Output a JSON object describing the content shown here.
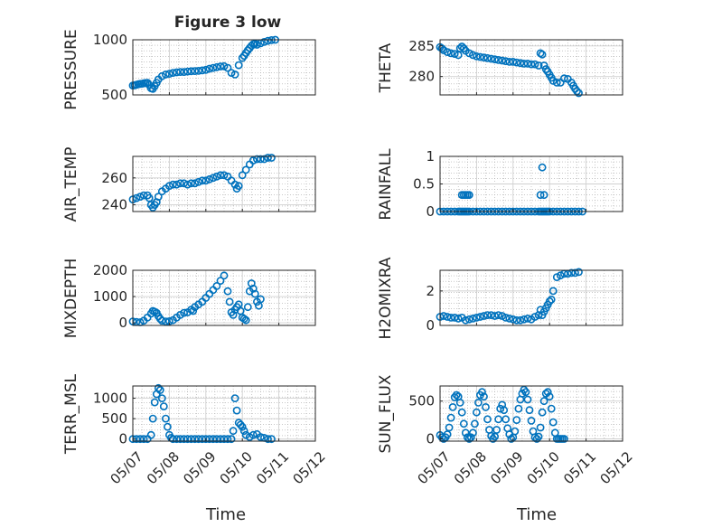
{
  "figure": {
    "title": "Figure 3 low",
    "xlabel": "Time",
    "xticks": [
      "05/07",
      "05/08",
      "05/09",
      "05/10",
      "05/11",
      "05/12"
    ]
  },
  "colors": {
    "marker": "#0072BD",
    "axis": "#262626",
    "grid": "#a8a8a8"
  },
  "chart_data": [
    {
      "type": "scatter",
      "name": "PRESSURE",
      "ylabel": "PRESSURE",
      "ylim": [
        500,
        1000
      ],
      "yticks": [
        500,
        1000
      ],
      "xlim": [
        0,
        5
      ],
      "grid": true,
      "title": "Figure 3 low",
      "x": [
        0.0,
        0.05,
        0.1,
        0.15,
        0.2,
        0.25,
        0.3,
        0.35,
        0.4,
        0.45,
        0.5,
        0.55,
        0.6,
        0.65,
        0.7,
        0.8,
        0.9,
        1.0,
        1.1,
        1.2,
        1.3,
        1.4,
        1.5,
        1.6,
        1.7,
        1.8,
        1.9,
        2.0,
        2.1,
        2.2,
        2.3,
        2.4,
        2.5,
        2.6,
        2.7,
        2.8,
        2.9,
        3.0,
        3.05,
        3.1,
        3.15,
        3.2,
        3.25,
        3.3,
        3.35,
        3.4,
        3.5,
        3.6,
        3.7,
        3.8,
        3.9
      ],
      "y": [
        585,
        588,
        592,
        597,
        600,
        602,
        605,
        608,
        610,
        590,
        560,
        555,
        580,
        610,
        640,
        670,
        685,
        692,
        700,
        705,
        708,
        708,
        712,
        715,
        716,
        718,
        722,
        727,
        738,
        745,
        752,
        758,
        760,
        745,
        700,
        685,
        770,
        835,
        855,
        880,
        905,
        925,
        945,
        960,
        965,
        955,
        968,
        980,
        990,
        997,
        1000
      ]
    },
    {
      "type": "scatter",
      "name": "THETA",
      "ylabel": "THETA",
      "ylim": [
        277,
        286
      ],
      "yticks": [
        280,
        285
      ],
      "xlim": [
        0,
        5
      ],
      "grid": true,
      "x": [
        0.0,
        0.05,
        0.1,
        0.2,
        0.3,
        0.4,
        0.5,
        0.55,
        0.6,
        0.65,
        0.7,
        0.8,
        0.9,
        1.0,
        1.1,
        1.2,
        1.3,
        1.4,
        1.5,
        1.6,
        1.7,
        1.8,
        1.9,
        2.0,
        2.1,
        2.2,
        2.3,
        2.4,
        2.5,
        2.6,
        2.7,
        2.75,
        2.8,
        2.85,
        2.9,
        2.95,
        3.0,
        3.05,
        3.1,
        3.2,
        3.3,
        3.4,
        3.5,
        3.6,
        3.65,
        3.7,
        3.75,
        3.8
      ],
      "y": [
        284.8,
        284.6,
        284.3,
        284.0,
        283.8,
        283.7,
        283.5,
        284.6,
        284.9,
        284.6,
        284.2,
        283.8,
        283.5,
        283.3,
        283.2,
        283.1,
        283.0,
        282.9,
        282.8,
        282.7,
        282.6,
        282.5,
        282.4,
        282.4,
        282.3,
        282.2,
        282.1,
        282.1,
        282.0,
        282.0,
        281.8,
        283.8,
        283.6,
        281.8,
        281.2,
        280.8,
        280.3,
        279.8,
        279.3,
        279.0,
        279.0,
        279.7,
        279.6,
        279.0,
        278.5,
        278.0,
        277.6,
        277.3
      ]
    },
    {
      "type": "scatter",
      "name": "AIR_TEMP",
      "ylabel": "AIR_TEMP",
      "ylim": [
        235,
        276
      ],
      "yticks": [
        240,
        260
      ],
      "xlim": [
        0,
        5
      ],
      "grid": true,
      "x": [
        0.0,
        0.1,
        0.2,
        0.3,
        0.4,
        0.45,
        0.5,
        0.55,
        0.6,
        0.65,
        0.7,
        0.8,
        0.9,
        1.0,
        1.1,
        1.2,
        1.3,
        1.4,
        1.5,
        1.6,
        1.7,
        1.8,
        1.9,
        2.0,
        2.1,
        2.2,
        2.3,
        2.4,
        2.5,
        2.6,
        2.7,
        2.8,
        2.85,
        2.9,
        3.0,
        3.1,
        3.2,
        3.3,
        3.4,
        3.5,
        3.6,
        3.7,
        3.8
      ],
      "y": [
        244,
        245,
        246,
        247,
        247,
        245,
        240,
        238,
        240,
        242,
        246,
        250,
        252,
        254,
        255,
        255,
        256,
        256,
        255,
        256,
        256,
        257,
        258,
        258,
        259,
        260,
        261,
        262,
        262,
        261,
        258,
        255,
        252,
        254,
        262,
        266,
        270,
        273,
        274,
        274,
        274,
        275,
        275
      ]
    },
    {
      "type": "scatter",
      "name": "RAINFALL",
      "ylabel": "RAINFALL",
      "ylim": [
        0,
        1
      ],
      "yticks": [
        0,
        0.5,
        1
      ],
      "xlim": [
        0,
        5
      ],
      "grid": true,
      "x": [
        0.0,
        0.1,
        0.2,
        0.3,
        0.4,
        0.5,
        0.55,
        0.6,
        0.65,
        0.7,
        0.75,
        0.8,
        0.9,
        1.0,
        1.1,
        1.2,
        1.3,
        1.4,
        1.5,
        1.6,
        1.7,
        1.8,
        1.9,
        2.0,
        2.1,
        2.2,
        2.3,
        2.4,
        2.5,
        2.6,
        2.7,
        2.75,
        2.8,
        2.85,
        2.9,
        2.95,
        3.0,
        3.1,
        3.2,
        3.3,
        3.4,
        3.5,
        3.6,
        3.7,
        3.8,
        3.9,
        0.6,
        0.65,
        0.7,
        0.75,
        0.8,
        2.75,
        2.8,
        2.85
      ],
      "y": [
        0,
        0,
        0,
        0,
        0,
        0,
        0,
        0,
        0,
        0,
        0,
        0,
        0,
        0,
        0,
        0,
        0,
        0,
        0,
        0,
        0,
        0,
        0,
        0,
        0,
        0,
        0,
        0,
        0,
        0,
        0,
        0,
        0,
        0,
        0,
        0,
        0,
        0,
        0,
        0,
        0,
        0,
        0,
        0,
        0,
        0,
        0.3,
        0.3,
        0.3,
        0.3,
        0.3,
        0.3,
        0.8,
        0.3
      ]
    },
    {
      "type": "scatter",
      "name": "MIXDEPTH",
      "ylabel": "MIXDEPTH",
      "ylim": [
        -100,
        2000
      ],
      "yticks": [
        0,
        1000,
        2000
      ],
      "xlim": [
        0,
        5
      ],
      "grid": true,
      "x": [
        0.0,
        0.1,
        0.2,
        0.3,
        0.4,
        0.5,
        0.55,
        0.6,
        0.65,
        0.7,
        0.75,
        0.8,
        0.9,
        1.0,
        1.1,
        1.2,
        1.3,
        1.4,
        1.5,
        1.6,
        1.65,
        1.7,
        1.8,
        1.9,
        2.0,
        2.1,
        2.2,
        2.3,
        2.4,
        2.5,
        2.6,
        2.65,
        2.7,
        2.75,
        2.8,
        2.85,
        2.9,
        2.95,
        3.0,
        3.05,
        3.1,
        3.15,
        3.2,
        3.25,
        3.3,
        3.35,
        3.4,
        3.45,
        3.5
      ],
      "y": [
        50,
        30,
        20,
        80,
        200,
        350,
        450,
        420,
        380,
        250,
        150,
        80,
        50,
        60,
        100,
        200,
        300,
        380,
        400,
        500,
        450,
        600,
        700,
        800,
        950,
        1100,
        1250,
        1400,
        1600,
        1800,
        1200,
        800,
        400,
        300,
        500,
        600,
        700,
        450,
        200,
        150,
        100,
        600,
        1200,
        1500,
        1300,
        1100,
        800,
        650,
        900
      ]
    },
    {
      "type": "scatter",
      "name": "H2OMIXRA",
      "ylabel": "H2OMIXRA",
      "ylim": [
        0,
        3.2
      ],
      "yticks": [
        0,
        2
      ],
      "xlim": [
        0,
        5
      ],
      "grid": true,
      "x": [
        0.0,
        0.1,
        0.2,
        0.3,
        0.4,
        0.5,
        0.6,
        0.7,
        0.8,
        0.9,
        1.0,
        1.1,
        1.2,
        1.3,
        1.4,
        1.5,
        1.6,
        1.7,
        1.8,
        1.9,
        2.0,
        2.1,
        2.2,
        2.3,
        2.4,
        2.5,
        2.6,
        2.7,
        2.75,
        2.8,
        2.85,
        2.9,
        2.95,
        3.0,
        3.05,
        3.1,
        3.2,
        3.3,
        3.4,
        3.5,
        3.6,
        3.7,
        3.8
      ],
      "y": [
        0.5,
        0.55,
        0.5,
        0.45,
        0.45,
        0.4,
        0.45,
        0.3,
        0.35,
        0.4,
        0.45,
        0.5,
        0.55,
        0.6,
        0.6,
        0.55,
        0.6,
        0.55,
        0.45,
        0.4,
        0.35,
        0.3,
        0.3,
        0.35,
        0.4,
        0.35,
        0.5,
        0.6,
        0.9,
        0.6,
        0.8,
        1.0,
        1.2,
        1.4,
        1.5,
        2.0,
        2.8,
        2.9,
        3.0,
        3.0,
        3.05,
        3.05,
        3.1
      ]
    },
    {
      "type": "scatter",
      "name": "TERR_MSL",
      "ylabel": "TERR_MSL",
      "ylim": [
        -50,
        1300
      ],
      "yticks": [
        0,
        500,
        1000
      ],
      "xlim": [
        0,
        5
      ],
      "grid": true,
      "x": [
        0.0,
        0.1,
        0.2,
        0.3,
        0.4,
        0.5,
        0.55,
        0.6,
        0.65,
        0.7,
        0.75,
        0.8,
        0.85,
        0.9,
        0.95,
        1.0,
        1.05,
        1.1,
        1.2,
        1.3,
        1.4,
        1.5,
        1.6,
        1.7,
        1.8,
        1.9,
        2.0,
        2.1,
        2.2,
        2.3,
        2.4,
        2.5,
        2.6,
        2.7,
        2.75,
        2.8,
        2.85,
        2.9,
        2.95,
        3.0,
        3.05,
        3.1,
        3.2,
        3.3,
        3.4,
        3.5,
        3.6,
        3.7,
        3.8
      ],
      "y": [
        0,
        0,
        0,
        0,
        0,
        100,
        500,
        900,
        1100,
        1250,
        1200,
        1000,
        800,
        500,
        300,
        100,
        30,
        0,
        0,
        0,
        0,
        0,
        0,
        0,
        0,
        0,
        0,
        0,
        0,
        0,
        0,
        0,
        0,
        0,
        200,
        1000,
        700,
        400,
        350,
        300,
        200,
        100,
        50,
        100,
        120,
        50,
        30,
        0,
        0
      ]
    },
    {
      "type": "scatter",
      "name": "SUN_FLUX",
      "ylabel": "SUN_FLUX",
      "ylim": [
        -30,
        700
      ],
      "yticks": [
        0,
        500
      ],
      "xlim": [
        0,
        5
      ],
      "grid": true,
      "x": [
        0.0,
        0.05,
        0.1,
        0.15,
        0.2,
        0.25,
        0.3,
        0.35,
        0.4,
        0.45,
        0.5,
        0.55,
        0.6,
        0.65,
        0.7,
        0.75,
        0.8,
        0.85,
        0.9,
        0.95,
        1.0,
        1.05,
        1.1,
        1.15,
        1.2,
        1.25,
        1.3,
        1.35,
        1.4,
        1.45,
        1.5,
        1.55,
        1.6,
        1.65,
        1.7,
        1.75,
        1.8,
        1.85,
        1.9,
        1.95,
        2.0,
        2.05,
        2.1,
        2.15,
        2.2,
        2.25,
        2.3,
        2.35,
        2.4,
        2.45,
        2.5,
        2.55,
        2.6,
        2.65,
        2.7,
        2.75,
        2.8,
        2.85,
        2.9,
        2.95,
        3.0,
        3.05,
        3.1,
        3.15,
        3.2,
        3.25,
        3.3,
        3.35,
        3.4
      ],
      "y": [
        50,
        20,
        0,
        20,
        60,
        150,
        280,
        420,
        550,
        580,
        560,
        480,
        350,
        200,
        80,
        20,
        0,
        20,
        80,
        200,
        350,
        480,
        580,
        620,
        560,
        420,
        260,
        120,
        40,
        0,
        30,
        120,
        260,
        400,
        450,
        380,
        260,
        140,
        60,
        0,
        20,
        100,
        250,
        400,
        520,
        600,
        650,
        620,
        520,
        380,
        240,
        100,
        20,
        0,
        30,
        150,
        350,
        500,
        600,
        620,
        560,
        400,
        220,
        80,
        0,
        0,
        0,
        0,
        0
      ]
    }
  ]
}
